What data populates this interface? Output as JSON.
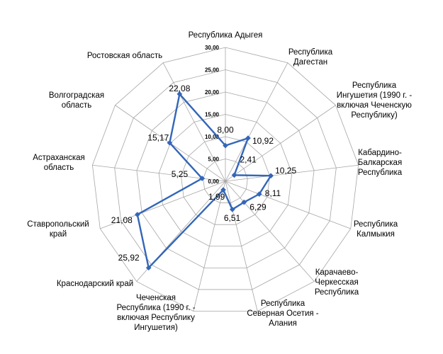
{
  "chart_data": {
    "type": "radar",
    "title": "",
    "rlim": [
      0,
      30
    ],
    "ticks": [
      "0,00",
      "5,00",
      "10,00",
      "15,00",
      "20,00",
      "25,00",
      "30,00"
    ],
    "grid": true,
    "legend": "none",
    "colors": {
      "series": "#3366B8",
      "grid": "#A6A6A6"
    },
    "categories": [
      "Республика Адыгея",
      "Республика Дагестан",
      "Республика Ингушетия (1990 г. - включая Чеченскую Республику)",
      "Кабардино-Балкарская Республика",
      "Республика Калмыкия",
      "Карачаево-Черкесская Республика",
      "Республика Северная Осетия - Алания",
      "Чеченская Республика (1990 г. - включая Республику Ингушетия)",
      "Краснодарский край",
      "Ставропольский край",
      "Астраханская область",
      "Волгоградская область",
      "Ростовская область"
    ],
    "series": [
      {
        "values": [
          8.0,
          10.92,
          2.41,
          10.25,
          8.11,
          6.29,
          6.51,
          1.99,
          25.92,
          21.08,
          5.25,
          15.17,
          22.08
        ],
        "value_labels": [
          "8,00",
          "10,92",
          "2,41",
          "10,25",
          "8,11",
          "6,29",
          "6,51",
          "1,99",
          "25,92",
          "21,08",
          "5,25",
          "15,17",
          "22,08"
        ]
      }
    ]
  }
}
